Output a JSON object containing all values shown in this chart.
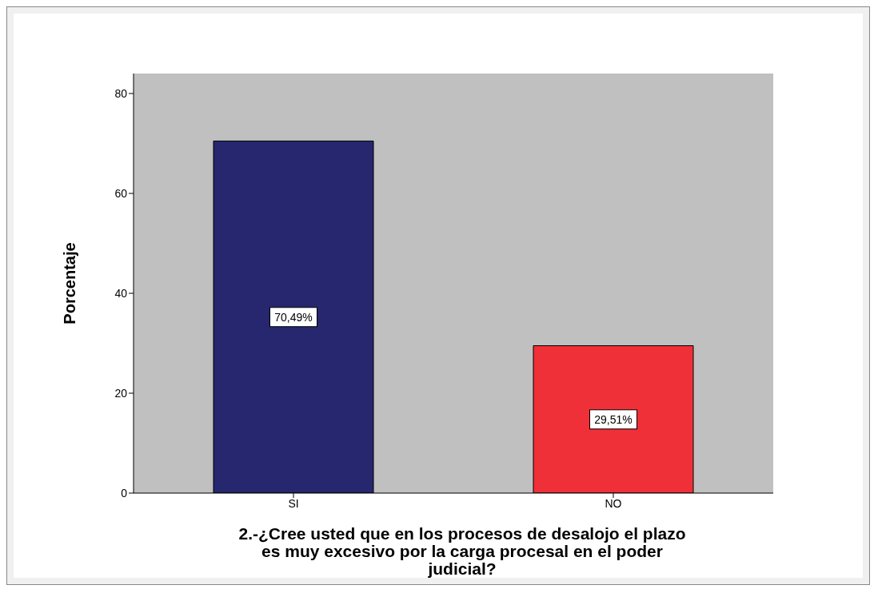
{
  "chart_data": {
    "type": "bar",
    "xlabel": "2.-¿Cree usted que en los procesos de desalojo el plazo es muy excesivo por la carga procesal en el poder judicial?",
    "ylabel": "Porcentaje",
    "categories": [
      "SI",
      "NO"
    ],
    "values": [
      70.49,
      29.51
    ],
    "value_labels": [
      "70,49%",
      "29,51%"
    ],
    "colors": [
      "#26276f",
      "#ef3038"
    ],
    "ylim": [
      0,
      84
    ],
    "yticks": [
      0,
      20,
      40,
      60,
      80
    ]
  }
}
